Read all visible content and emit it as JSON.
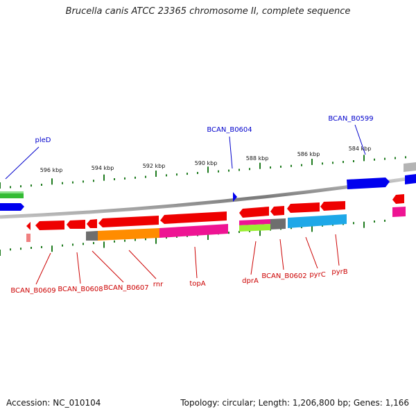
{
  "title": "Brucella canis ATCC 23365 chromosome II, complete sequence",
  "footer": {
    "accession": "Accession: NC_010104",
    "summary": "Topology: circular; Length: 1,206,800 bp; Genes: 1,166"
  },
  "scale_ticks": [
    "596 kbp",
    "594 kbp",
    "592 kbp",
    "590 kbp",
    "588 kbp",
    "586 kbp",
    "584 kbp"
  ],
  "gene_labels": {
    "top": [
      "pleD",
      "BCAN_B0604",
      "BCAN_B0599"
    ],
    "bottom": [
      "BCAN_B0609",
      "BCAN_B0608",
      "BCAN_B0607",
      "rnr",
      "topA",
      "dprA",
      "BCAN_B0602",
      "pyrC",
      "pyrB"
    ]
  },
  "colors": {
    "backbone": "#8a8a8a",
    "tick": "#1d7a1d",
    "label_blue": "#0000cc",
    "label_red": "#cc0000",
    "gene_red": "#ee0000",
    "gene_blue": "#0000ee",
    "gene_green": "#33bb33",
    "gene_orange": "#ff8c00",
    "gene_magenta": "#ee1493",
    "gene_cyan": "#1ea8e8",
    "gene_gray": "#6e6e6e",
    "gene_lime": "#99ee33",
    "gene_silver": "#b4b4b4"
  }
}
